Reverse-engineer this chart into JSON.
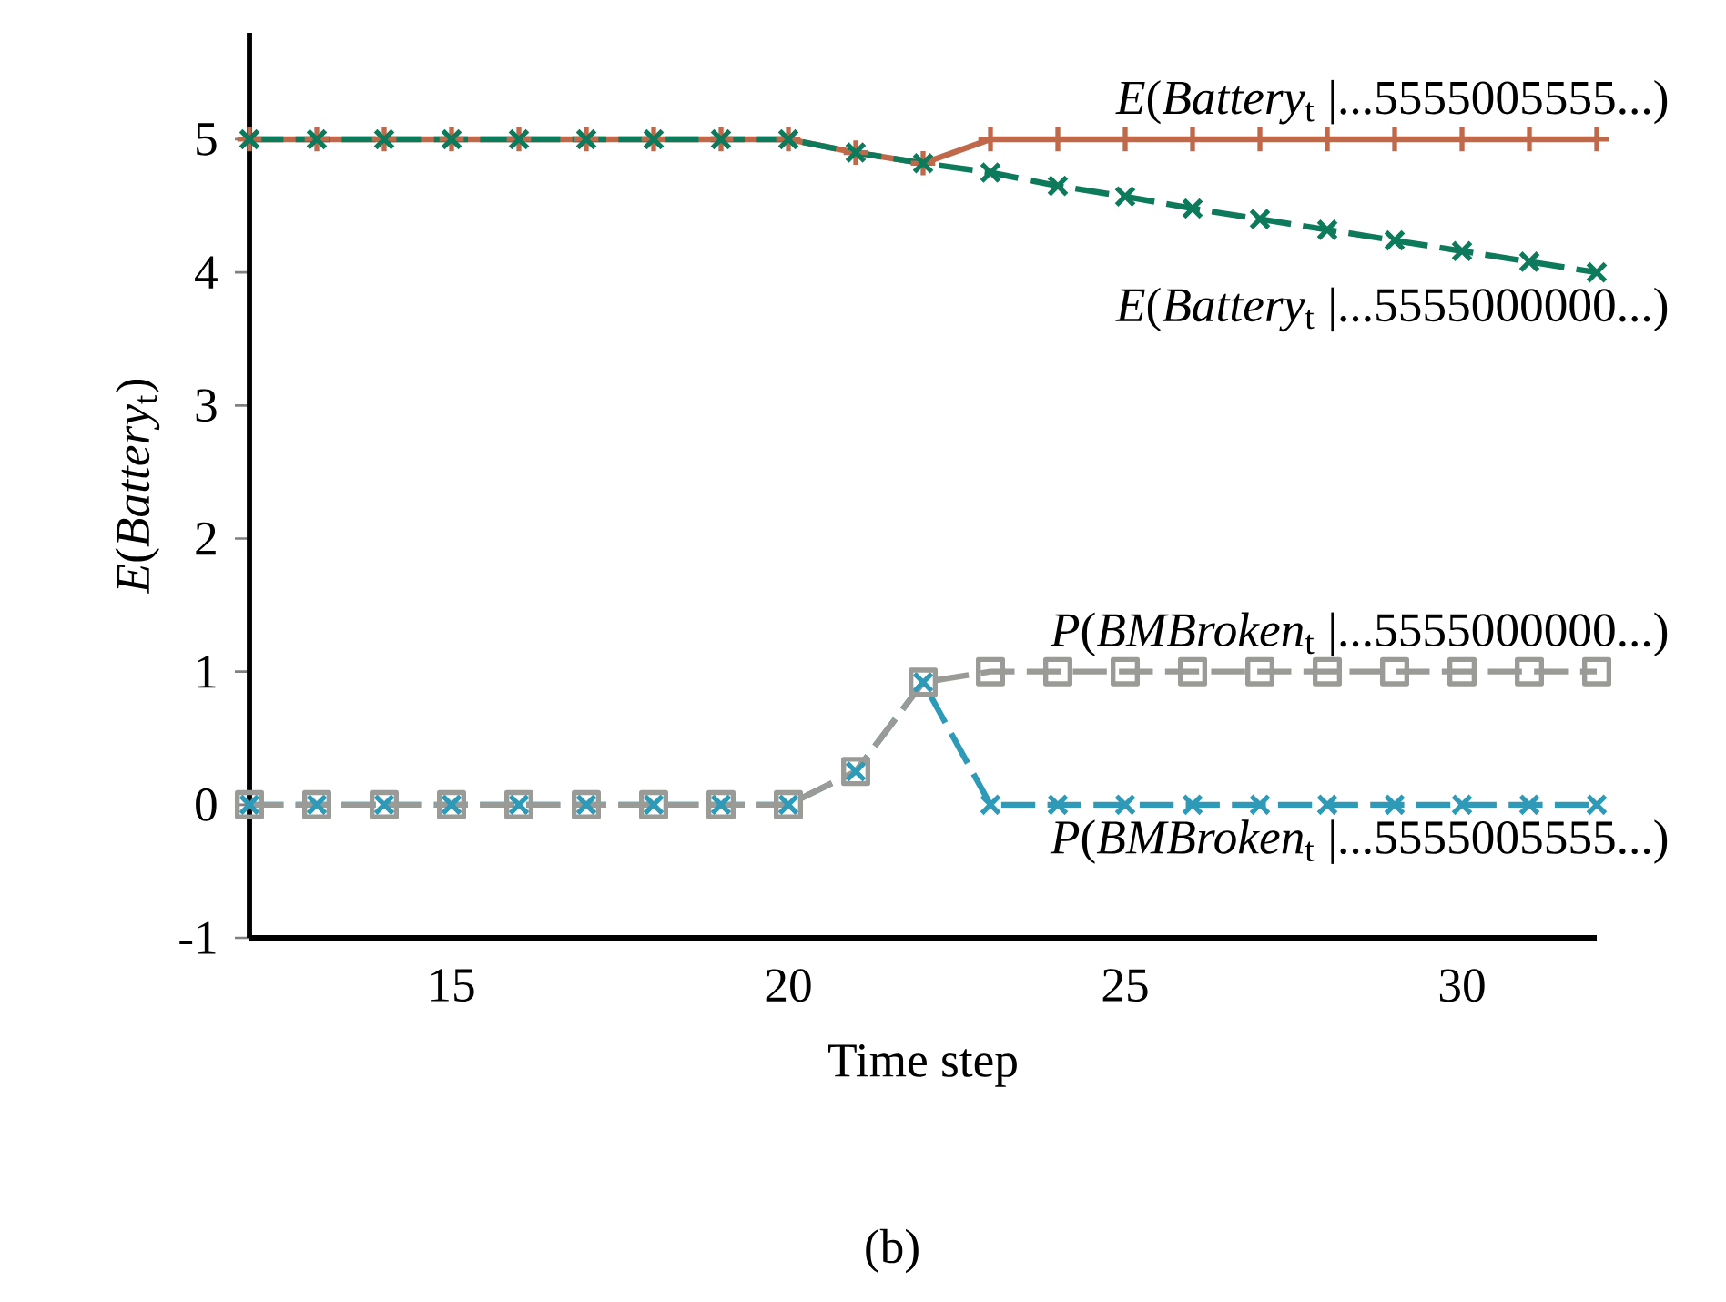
{
  "chart_data": {
    "type": "line",
    "xlabel": "Time step",
    "ylabel": "*E*(*Battery*$_{t}$)",
    "x": [
      12,
      13,
      14,
      15,
      16,
      17,
      18,
      19,
      20,
      21,
      22,
      23,
      24,
      25,
      26,
      27,
      28,
      29,
      30,
      31,
      32
    ],
    "series": [
      {
        "name": "*E*(*Battery*$_{t}$ |...5555005555...)",
        "color": "#c0694a",
        "marker": "plus",
        "line_style": "solid",
        "values": [
          5,
          5,
          5,
          5,
          5,
          5,
          5,
          5,
          5,
          4.9,
          4.82,
          5,
          5,
          5,
          5,
          5,
          5,
          5,
          5,
          5,
          5
        ]
      },
      {
        "name": "*E*(*Battery*$_{t}$ |...5555000000...)",
        "color": "#0e7a5c",
        "marker": "cross",
        "line_style": "dashed",
        "values": [
          5,
          5,
          5,
          5,
          5,
          5,
          5,
          5,
          5,
          4.9,
          4.82,
          4.75,
          4.65,
          4.57,
          4.48,
          4.4,
          4.32,
          4.24,
          4.16,
          4.08,
          4.0
        ]
      },
      {
        "name": "*P*(*BMBroken*$_{t}$ |...5555005555...)",
        "color": "#2e9ab8",
        "marker": "cross",
        "line_style": "dashed",
        "values": [
          0,
          0,
          0,
          0,
          0,
          0,
          0,
          0,
          0,
          0.25,
          0.92,
          0,
          0,
          0,
          0,
          0,
          0,
          0,
          0,
          0,
          0
        ]
      },
      {
        "name": "*P*(*BMBroken*$_{t}$ |...5555000000...)",
        "color": "#9a9a96",
        "marker": "square",
        "line_style": "dashed",
        "values": [
          0,
          0,
          0,
          0,
          0,
          0,
          0,
          0,
          0,
          0.25,
          0.92,
          1,
          1,
          1,
          1,
          1,
          1,
          1,
          1,
          1,
          1
        ]
      }
    ],
    "xlim": [
      12,
      32
    ],
    "ylim": [
      -1,
      5.8
    ],
    "xticks": [
      15,
      20,
      25,
      30
    ],
    "yticks": [
      -1,
      0,
      1,
      2,
      3,
      4,
      5
    ],
    "grid": false,
    "annotations": [
      "(b)"
    ]
  }
}
